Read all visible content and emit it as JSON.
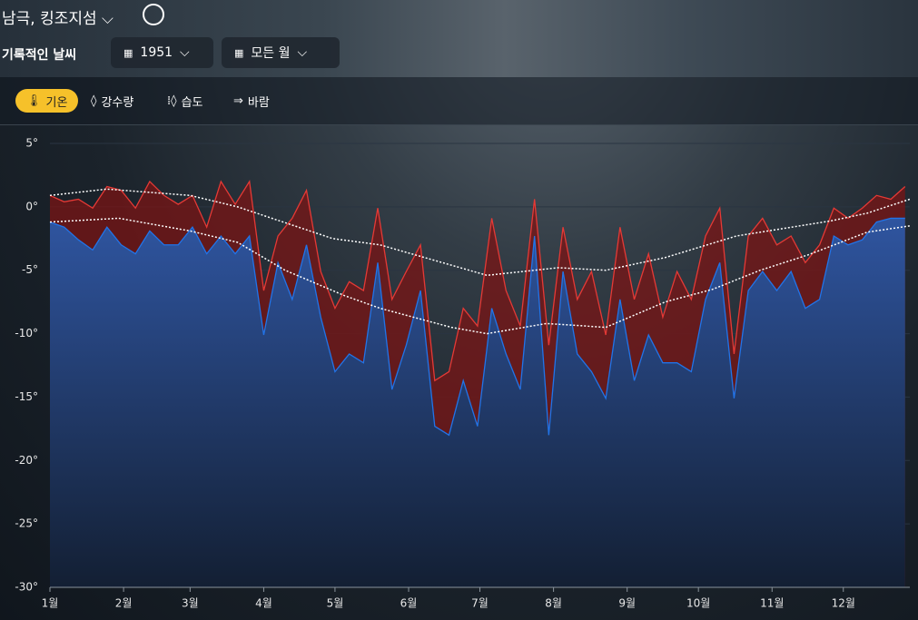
{
  "header": {
    "location": "남극, 킹조지섬",
    "page_title": "기록적인 날씨",
    "year": "1951",
    "months": "모든 월"
  },
  "tabs": [
    "기온",
    "강수량",
    "습도",
    "바람"
  ],
  "chart_data": {
    "type": "line",
    "x": [
      1,
      7,
      13,
      19,
      25,
      31,
      37,
      43,
      49,
      55,
      61,
      67,
      73,
      79,
      85,
      91,
      97,
      103,
      109,
      115,
      121,
      127,
      133,
      139,
      145,
      151,
      157,
      163,
      169,
      175,
      181,
      187,
      193,
      199,
      205,
      211,
      217,
      223,
      229,
      235,
      241,
      247,
      253,
      259,
      265,
      271,
      277,
      283,
      289,
      295,
      301,
      307,
      313,
      319,
      325,
      331,
      337,
      343,
      349,
      355,
      361
    ],
    "series": [
      {
        "color": "#e53935",
        "fill": "#7a1414",
        "values": [
          0.9,
          0.4,
          0.6,
          -0.1,
          1.6,
          1.3,
          -0.1,
          2.0,
          0.9,
          0.2,
          0.9,
          -1.6,
          2.0,
          0.2,
          2.0,
          -6.6,
          -2.3,
          -0.9,
          1.3,
          -5.1,
          -8.0,
          -5.9,
          -6.6,
          -0.1,
          -7.3,
          -5.1,
          -3.0,
          -13.7,
          -13.0,
          -8.0,
          -9.4,
          -0.9,
          -6.6,
          -9.4,
          0.6,
          -10.9,
          -1.6,
          -7.3,
          -5.1,
          -10.1,
          -1.6,
          -7.3,
          -3.7,
          -8.7,
          -5.1,
          -7.3,
          -2.3,
          -0.1,
          -11.6,
          -2.3,
          -0.9,
          -3.0,
          -2.3,
          -4.4,
          -3.0,
          -0.1,
          -0.9,
          -0.1,
          0.9,
          0.6,
          1.6
        ]
      },
      {
        "color": "#2174e8",
        "fill": "#2d4d8f",
        "values": [
          -1.2,
          -1.6,
          -2.6,
          -3.4,
          -1.6,
          -3.0,
          -3.7,
          -1.9,
          -3.0,
          -3.0,
          -1.6,
          -3.7,
          -2.3,
          -3.7,
          -2.3,
          -10.1,
          -4.4,
          -7.3,
          -3.0,
          -8.7,
          -13.0,
          -11.6,
          -12.3,
          -4.4,
          -14.4,
          -10.9,
          -6.6,
          -17.3,
          -18.0,
          -13.7,
          -17.3,
          -8.0,
          -11.6,
          -14.4,
          -2.3,
          -18.0,
          -5.1,
          -11.6,
          -13.0,
          -15.1,
          -7.3,
          -13.7,
          -10.1,
          -12.3,
          -12.3,
          -13.0,
          -7.3,
          -4.4,
          -15.1,
          -6.6,
          -5.1,
          -6.6,
          -5.1,
          -8.0,
          -7.3,
          -2.3,
          -3.0,
          -2.6,
          -1.2,
          -0.9,
          -0.9
        ]
      },
      {
        "color": "#ffffff",
        "dashed": true,
        "x": [
          1,
          25,
          60,
          80,
          120,
          140,
          170,
          185,
          215,
          235,
          260,
          290,
          310,
          330,
          345,
          363
        ],
        "values": [
          0.9,
          1.4,
          0.9,
          0.0,
          -2.5,
          -3.0,
          -4.6,
          -5.4,
          -4.8,
          -5.0,
          -4.0,
          -2.3,
          -1.7,
          -1.1,
          -0.5,
          0.6
        ]
      },
      {
        "color": "#ffffff",
        "dashed": true,
        "x": [
          1,
          30,
          60,
          80,
          100,
          125,
          140,
          170,
          185,
          210,
          235,
          260,
          280,
          300,
          320,
          345,
          363
        ],
        "values": [
          -1.2,
          -0.9,
          -1.9,
          -2.8,
          -5.0,
          -7.0,
          -8.0,
          -9.5,
          -10.0,
          -9.2,
          -9.5,
          -7.5,
          -6.5,
          -5.0,
          -3.8,
          -2.0,
          -1.5
        ]
      }
    ],
    "xlim": [
      1,
      363
    ],
    "xticks": [
      {
        "value": 1,
        "label": "1월"
      },
      {
        "value": 32,
        "label": "2월"
      },
      {
        "value": 60,
        "label": "3월"
      },
      {
        "value": 91,
        "label": "4월"
      },
      {
        "value": 121,
        "label": "5월"
      },
      {
        "value": 152,
        "label": "6월"
      },
      {
        "value": 182,
        "label": "7월"
      },
      {
        "value": 213,
        "label": "8월"
      },
      {
        "value": 244,
        "label": "9월"
      },
      {
        "value": 274,
        "label": "10월"
      },
      {
        "value": 305,
        "label": "11월"
      },
      {
        "value": 335,
        "label": "12월"
      }
    ],
    "ylim": [
      -30,
      5
    ],
    "yticks": [
      {
        "value": 5,
        "label": "5°"
      },
      {
        "value": 0,
        "label": "0°"
      },
      {
        "value": -5,
        "label": "-5°"
      },
      {
        "value": -10,
        "label": "-10°"
      },
      {
        "value": -15,
        "label": "-15°"
      },
      {
        "value": -20,
        "label": "-20°"
      },
      {
        "value": -25,
        "label": "-25°"
      },
      {
        "value": -30,
        "label": "-30°"
      }
    ],
    "grid": true
  }
}
